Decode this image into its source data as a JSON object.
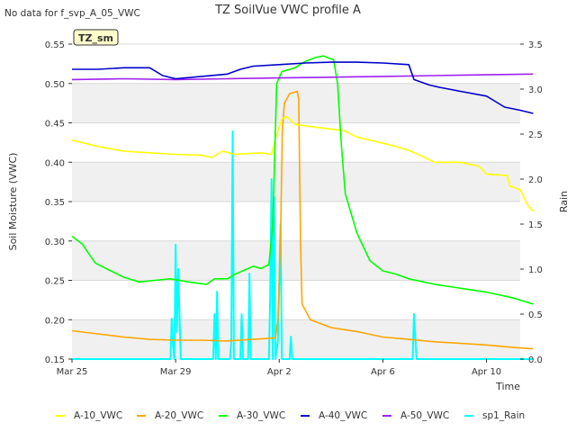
{
  "header": {
    "nodata_text": "No data for f_svp_A_05_VWC"
  },
  "chart_data": {
    "type": "line",
    "title": "TZ SoilVue VWC profile A",
    "xlabel": "Time",
    "ylabel": "Soil Moisture (VWC)",
    "y2label": "Rain",
    "annotation": "TZ_sm",
    "x_ticks": [
      "Mar 25",
      "Mar 29",
      "Apr 2",
      "Apr 6",
      "Apr 10"
    ],
    "x_tick_day": [
      0,
      4,
      8,
      12,
      16
    ],
    "x_range_day": [
      0,
      17.3
    ],
    "ylim": [
      0.15,
      0.55
    ],
    "y_ticks": [
      "0.15",
      "0.20",
      "0.25",
      "0.30",
      "0.35",
      "0.40",
      "0.45",
      "0.50",
      "0.55"
    ],
    "y2lim": [
      0.0,
      3.5
    ],
    "y2_ticks": [
      "0.0",
      "0.5",
      "1.0",
      "1.5",
      "2.0",
      "2.5",
      "3.0",
      "3.5"
    ],
    "grid": true,
    "legend_position": "bottom",
    "series": [
      {
        "name": "A-10_VWC",
        "color": "#FFFF00",
        "axis": "left",
        "points": [
          [
            0,
            0.428
          ],
          [
            0.5,
            0.424
          ],
          [
            1,
            0.42
          ],
          [
            2,
            0.414
          ],
          [
            3,
            0.412
          ],
          [
            4,
            0.41
          ],
          [
            5,
            0.409
          ],
          [
            5.4,
            0.406
          ],
          [
            5.8,
            0.414
          ],
          [
            6.3,
            0.41
          ],
          [
            7.3,
            0.412
          ],
          [
            7.7,
            0.41
          ],
          [
            7.85,
            0.43
          ],
          [
            8.1,
            0.455
          ],
          [
            8.3,
            0.458
          ],
          [
            8.6,
            0.448
          ],
          [
            9.5,
            0.444
          ],
          [
            10.5,
            0.44
          ],
          [
            11,
            0.432
          ],
          [
            11.5,
            0.428
          ],
          [
            12.5,
            0.42
          ],
          [
            13,
            0.415
          ],
          [
            13.5,
            0.408
          ],
          [
            14,
            0.4
          ],
          [
            15,
            0.4
          ],
          [
            15.7,
            0.395
          ],
          [
            16,
            0.385
          ],
          [
            16.8,
            0.383
          ],
          [
            16.9,
            0.37
          ],
          [
            17.3,
            0.365
          ],
          [
            17.6,
            0.345
          ],
          [
            17.8,
            0.338
          ]
        ]
      },
      {
        "name": "A-20_VWC",
        "color": "#FFA500",
        "axis": "left",
        "points": [
          [
            0,
            0.186
          ],
          [
            1,
            0.182
          ],
          [
            2,
            0.178
          ],
          [
            3,
            0.175
          ],
          [
            4,
            0.174
          ],
          [
            5,
            0.174
          ],
          [
            6,
            0.173
          ],
          [
            7,
            0.175
          ],
          [
            7.85,
            0.177
          ],
          [
            7.95,
            0.2
          ],
          [
            8.05,
            0.3
          ],
          [
            8.12,
            0.44
          ],
          [
            8.2,
            0.475
          ],
          [
            8.4,
            0.487
          ],
          [
            8.7,
            0.49
          ],
          [
            8.75,
            0.48
          ],
          [
            8.82,
            0.3
          ],
          [
            8.88,
            0.22
          ],
          [
            9.2,
            0.2
          ],
          [
            10,
            0.19
          ],
          [
            11,
            0.185
          ],
          [
            12,
            0.178
          ],
          [
            13,
            0.175
          ],
          [
            14,
            0.172
          ],
          [
            15,
            0.17
          ],
          [
            16,
            0.168
          ],
          [
            17,
            0.165
          ],
          [
            17.8,
            0.163
          ]
        ]
      },
      {
        "name": "A-30_VWC",
        "color": "#00FF00",
        "axis": "left",
        "points": [
          [
            0,
            0.306
          ],
          [
            0.4,
            0.296
          ],
          [
            0.9,
            0.272
          ],
          [
            1.5,
            0.262
          ],
          [
            2,
            0.254
          ],
          [
            2.6,
            0.248
          ],
          [
            3.2,
            0.25
          ],
          [
            3.8,
            0.252
          ],
          [
            4.5,
            0.248
          ],
          [
            5.2,
            0.245
          ],
          [
            5.5,
            0.252
          ],
          [
            6,
            0.252
          ],
          [
            6.3,
            0.258
          ],
          [
            6.8,
            0.265
          ],
          [
            7,
            0.268
          ],
          [
            7.3,
            0.265
          ],
          [
            7.6,
            0.27
          ],
          [
            7.75,
            0.32
          ],
          [
            7.9,
            0.5
          ],
          [
            8.1,
            0.515
          ],
          [
            8.6,
            0.52
          ],
          [
            9,
            0.528
          ],
          [
            9.4,
            0.533
          ],
          [
            9.7,
            0.535
          ],
          [
            10.1,
            0.53
          ],
          [
            10.25,
            0.5
          ],
          [
            10.4,
            0.42
          ],
          [
            10.55,
            0.36
          ],
          [
            11,
            0.31
          ],
          [
            11.5,
            0.275
          ],
          [
            12,
            0.262
          ],
          [
            12.5,
            0.258
          ],
          [
            13,
            0.252
          ],
          [
            14,
            0.245
          ],
          [
            15,
            0.24
          ],
          [
            16,
            0.235
          ],
          [
            17,
            0.228
          ],
          [
            17.8,
            0.22
          ]
        ]
      },
      {
        "name": "A-40_VWC",
        "color": "#0000CD",
        "axis": "left",
        "points": [
          [
            0,
            0.518
          ],
          [
            1,
            0.518
          ],
          [
            2,
            0.52
          ],
          [
            3,
            0.52
          ],
          [
            3.5,
            0.51
          ],
          [
            4,
            0.506
          ],
          [
            5,
            0.509
          ],
          [
            6,
            0.512
          ],
          [
            6.5,
            0.518
          ],
          [
            7,
            0.522
          ],
          [
            8,
            0.524
          ],
          [
            9,
            0.526
          ],
          [
            10,
            0.527
          ],
          [
            11,
            0.527
          ],
          [
            12,
            0.526
          ],
          [
            13,
            0.524
          ],
          [
            13.2,
            0.505
          ],
          [
            13.8,
            0.498
          ],
          [
            14.2,
            0.495
          ],
          [
            15,
            0.49
          ],
          [
            16,
            0.484
          ],
          [
            16.3,
            0.478
          ],
          [
            16.7,
            0.47
          ],
          [
            17.3,
            0.466
          ],
          [
            17.8,
            0.462
          ]
        ]
      },
      {
        "name": "A-50_VWC",
        "color": "#A020F0",
        "axis": "left",
        "points": [
          [
            0,
            0.505
          ],
          [
            2,
            0.506
          ],
          [
            4,
            0.505
          ],
          [
            6,
            0.506
          ],
          [
            8,
            0.507
          ],
          [
            10,
            0.508
          ],
          [
            12,
            0.509
          ],
          [
            14,
            0.51
          ],
          [
            16,
            0.511
          ],
          [
            17.8,
            0.512
          ]
        ]
      },
      {
        "name": "sp1_Rain",
        "color": "#00FFFF",
        "axis": "right",
        "points": [
          [
            0,
            0
          ],
          [
            3.8,
            0
          ],
          [
            3.85,
            0.45
          ],
          [
            3.9,
            0.15
          ],
          [
            3.95,
            0
          ],
          [
            4,
            1.27
          ],
          [
            4.05,
            0.3
          ],
          [
            4.1,
            1.0
          ],
          [
            4.2,
            0
          ],
          [
            5.45,
            0
          ],
          [
            5.5,
            0.5
          ],
          [
            5.55,
            0
          ],
          [
            5.6,
            0.75
          ],
          [
            5.65,
            0
          ],
          [
            6.1,
            0
          ],
          [
            6.15,
            0.2
          ],
          [
            6.2,
            2.53
          ],
          [
            6.25,
            0
          ],
          [
            6.5,
            0
          ],
          [
            6.55,
            0.5
          ],
          [
            6.6,
            0
          ],
          [
            6.8,
            0
          ],
          [
            6.85,
            0.95
          ],
          [
            6.9,
            0
          ],
          [
            7.6,
            0
          ],
          [
            7.65,
            0.7
          ],
          [
            7.7,
            2.0
          ],
          [
            7.75,
            0
          ],
          [
            7.8,
            1.8
          ],
          [
            7.85,
            0
          ],
          [
            7.95,
            0.2
          ],
          [
            8.05,
            1.5
          ],
          [
            8.1,
            0
          ],
          [
            8.4,
            0
          ],
          [
            8.45,
            0.25
          ],
          [
            8.5,
            0
          ],
          [
            13.15,
            0
          ],
          [
            13.2,
            0.5
          ],
          [
            13.25,
            0.25
          ],
          [
            13.3,
            0
          ],
          [
            17.8,
            0
          ]
        ]
      }
    ]
  }
}
